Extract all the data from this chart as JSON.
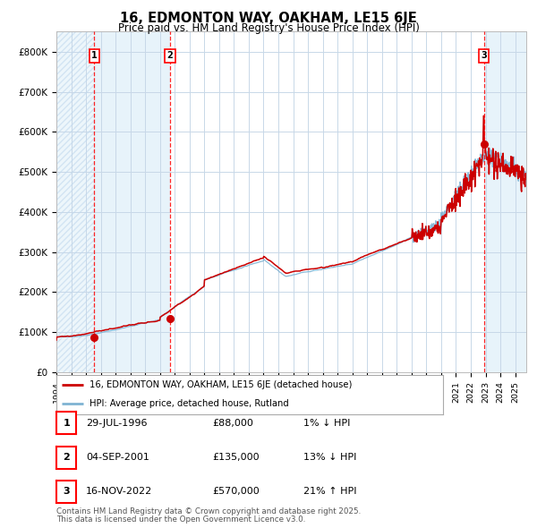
{
  "title1": "16, EDMONTON WAY, OAKHAM, LE15 6JE",
  "title2": "Price paid vs. HM Land Registry's House Price Index (HPI)",
  "ylim": [
    0,
    850000
  ],
  "yticks": [
    0,
    100000,
    200000,
    300000,
    400000,
    500000,
    600000,
    700000,
    800000
  ],
  "ytick_labels": [
    "£0",
    "£100K",
    "£200K",
    "£300K",
    "£400K",
    "£500K",
    "£600K",
    "£700K",
    "£800K"
  ],
  "year_start": 1994.0,
  "year_end": 2025.75,
  "hpi_color": "#7fb3d3",
  "price_color": "#cc0000",
  "transaction1_date": 1996.57,
  "transaction1_price": 88000,
  "transaction2_date": 2001.67,
  "transaction2_price": 135000,
  "transaction3_date": 2022.88,
  "transaction3_price": 570000,
  "legend_line1": "16, EDMONTON WAY, OAKHAM, LE15 6JE (detached house)",
  "legend_line2": "HPI: Average price, detached house, Rutland",
  "table_rows": [
    {
      "num": "1",
      "date": "29-JUL-1996",
      "price": "£88,000",
      "change": "1% ↓ HPI"
    },
    {
      "num": "2",
      "date": "04-SEP-2001",
      "price": "£135,000",
      "change": "13% ↓ HPI"
    },
    {
      "num": "3",
      "date": "16-NOV-2022",
      "price": "£570,000",
      "change": "21% ↑ HPI"
    }
  ],
  "footnote1": "Contains HM Land Registry data © Crown copyright and database right 2025.",
  "footnote2": "This data is licensed under the Open Government Licence v3.0.",
  "bg_color": "#ffffff",
  "grid_color": "#c8d8e8",
  "shade_color": "#ddeef8",
  "hatch_color": "#c0d8ee"
}
